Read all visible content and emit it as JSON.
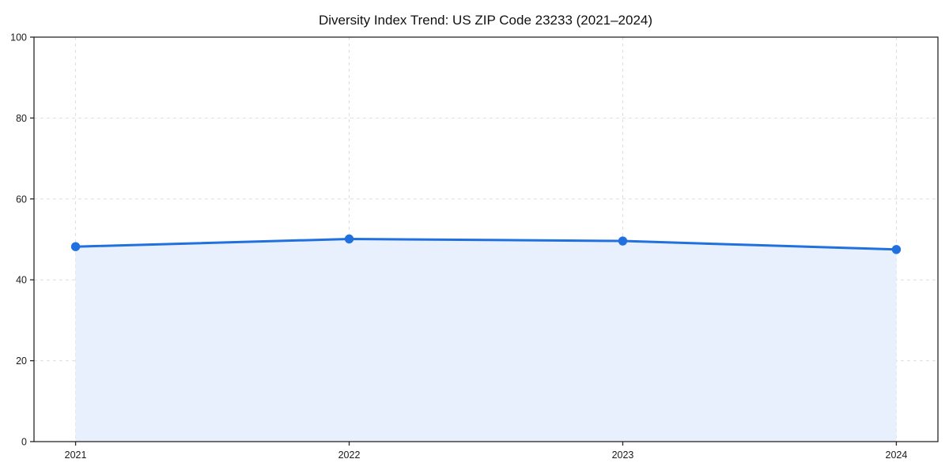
{
  "page": {
    "background": "#ffffff"
  },
  "chart_data": {
    "type": "area",
    "title": "Diversity Index Trend: US ZIP Code 23233 (2021–2024)",
    "categories": [
      "2021",
      "2022",
      "2023",
      "2024"
    ],
    "series": [
      {
        "name": "Diversity Index",
        "values": [
          48.2,
          50.1,
          49.6,
          47.5
        ]
      }
    ],
    "xlabel": "",
    "ylabel": "",
    "ylim": [
      0,
      100
    ],
    "yticks": [
      0,
      20,
      40,
      60,
      80,
      100
    ],
    "grid": true,
    "grid_style": "dashed",
    "legend": false,
    "colors": {
      "line": "#2170e0",
      "marker": "#2170e0",
      "fill": "#e7f0fc",
      "grid": "#dedede",
      "axis": "#262626",
      "tick_text": "#1a1a1a",
      "title_text": "#111111"
    }
  }
}
